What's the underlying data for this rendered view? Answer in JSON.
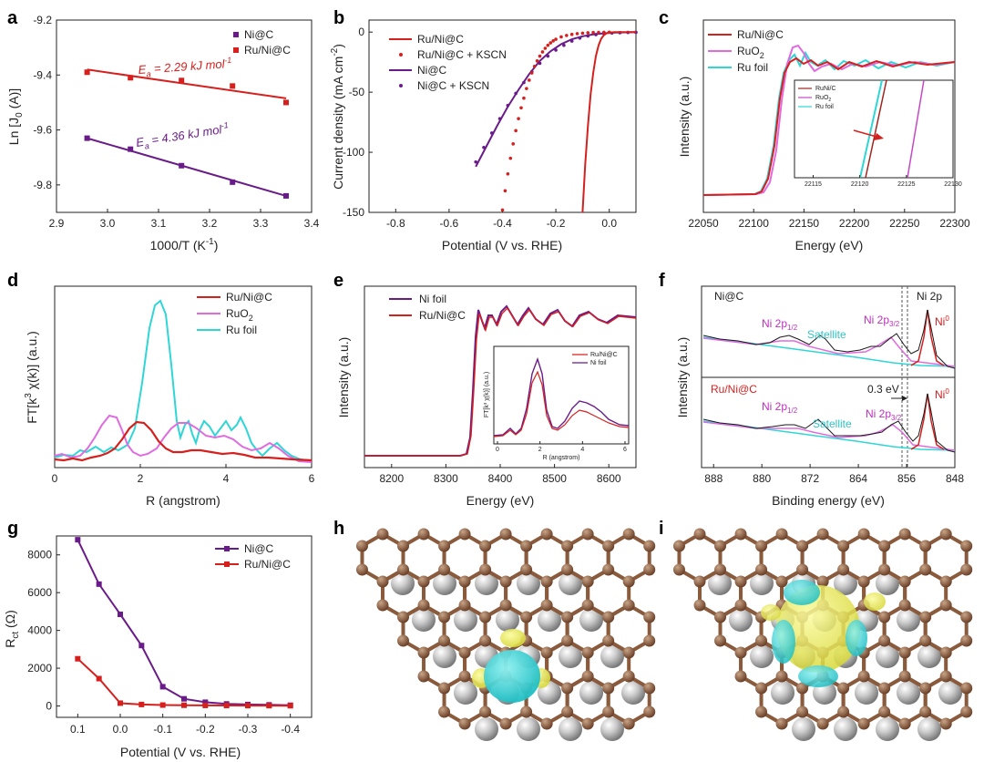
{
  "colors": {
    "red": "#d5201e",
    "purple": "#6a1b8a",
    "cyan": "#2fd6d6",
    "magenta": "#e06be0",
    "black": "#1a1a1a",
    "brown": "#8a5a3c",
    "gray": "#b9b9b9",
    "yellow": "#ecec55"
  },
  "panel_letters": [
    "a",
    "b",
    "c",
    "d",
    "e",
    "f",
    "g",
    "h",
    "i"
  ],
  "chart_data": [
    {
      "id": "a",
      "type": "scatter",
      "xlabel": "1000/T (K",
      "xlabel_sup": "-1",
      "xlabel_end": ")",
      "ylabel": "Ln [J",
      "ylabel_sub": "0",
      "ylabel_end": " (A)]",
      "xlim": [
        2.9,
        3.4
      ],
      "ylim": [
        -9.9,
        -9.2
      ],
      "xticks": [
        "2.9",
        "3.0",
        "3.1",
        "3.2",
        "3.3",
        "3.4"
      ],
      "yticks": [
        "-9.2",
        "-9.4",
        "-9.6",
        "-9.8"
      ],
      "legend": [
        "Ni@C",
        "Ru/Ni@C"
      ],
      "annotations": [
        {
          "main": "E",
          "sub": "a",
          "rest": " = 2.29 kJ mol",
          "sup": "-1"
        },
        {
          "main": "E",
          "sub": "a",
          "rest": " = 4.36 kJ mol",
          "sup": "-1"
        }
      ],
      "series": [
        {
          "name": "Ru/Ni@C",
          "x": [
            2.96,
            3.045,
            3.145,
            3.245,
            3.35
          ],
          "y": [
            -9.39,
            -9.41,
            -9.42,
            -9.44,
            -9.5
          ],
          "fit": [
            [
              2.96,
              -9.38
            ],
            [
              3.35,
              -9.485
            ]
          ]
        },
        {
          "name": "Ni@C",
          "x": [
            2.96,
            3.045,
            3.145,
            3.245,
            3.35
          ],
          "y": [
            -9.63,
            -9.67,
            -9.73,
            -9.79,
            -9.84
          ],
          "fit": [
            [
              2.96,
              -9.63
            ],
            [
              3.35,
              -9.84
            ]
          ]
        }
      ]
    },
    {
      "id": "b",
      "type": "line",
      "xlabel": "Potential (V vs. RHE)",
      "ylabel": "Current density (mA cm",
      "ylabel_sup": "-2",
      "ylabel_end": ")",
      "xlim": [
        -0.9,
        0.1
      ],
      "ylim": [
        -150,
        10
      ],
      "xticks": [
        "-0.8",
        "-0.6",
        "-0.4",
        "-0.2",
        "0.0"
      ],
      "yticks": [
        "0",
        "-50",
        "-100",
        "-150"
      ],
      "legend": [
        "Ru/Ni@C",
        "Ru/Ni@C + KSCN",
        "Ni@C",
        "Ni@C + KSCN"
      ],
      "series": [
        {
          "name": "Ru/Ni@C",
          "x": [
            -0.1,
            -0.09,
            -0.08,
            -0.07,
            -0.06,
            -0.05,
            -0.04,
            -0.03,
            -0.02,
            -0.01,
            0.0,
            0.02,
            0.1
          ],
          "y": [
            -150,
            -110,
            -78,
            -52,
            -34,
            -20,
            -11,
            -5.5,
            -2.5,
            -1,
            -0.4,
            -0.1,
            0
          ]
        },
        {
          "name": "Ru/Ni@C + KSCN",
          "x": [
            -0.4,
            -0.39,
            -0.38,
            -0.37,
            -0.36,
            -0.35,
            -0.34,
            -0.33,
            -0.32,
            -0.31,
            -0.3,
            -0.29,
            -0.28,
            -0.27,
            -0.26,
            -0.25,
            -0.24,
            -0.23,
            -0.22,
            -0.21,
            -0.2,
            -0.18,
            -0.16,
            -0.14,
            -0.12,
            -0.1,
            -0.08,
            -0.06,
            -0.04,
            -0.02,
            0.0
          ],
          "y": [
            -148,
            -132,
            -118,
            -105,
            -93,
            -82,
            -72,
            -63,
            -55,
            -47,
            -40,
            -34,
            -28.5,
            -24,
            -20,
            -16.5,
            -13.5,
            -11,
            -9,
            -7.3,
            -6,
            -4,
            -2.8,
            -1.9,
            -1.3,
            -0.9,
            -0.6,
            -0.4,
            -0.25,
            -0.15,
            -0.1
          ]
        },
        {
          "name": "Ni@C",
          "x": [
            -0.5,
            -0.46,
            -0.42,
            -0.38,
            -0.34,
            -0.3,
            -0.26,
            -0.22,
            -0.18,
            -0.14,
            -0.1,
            -0.06,
            -0.02,
            0.02,
            0.06,
            0.1
          ],
          "y": [
            -112,
            -95,
            -78,
            -62,
            -48,
            -35,
            -24,
            -16,
            -10,
            -6,
            -3.5,
            -2,
            -1,
            -0.5,
            -0.2,
            0
          ]
        },
        {
          "name": "Ni@C + KSCN",
          "x": [
            -0.5,
            -0.47,
            -0.44,
            -0.41,
            -0.38,
            -0.35,
            -0.32,
            -0.29,
            -0.26,
            -0.23,
            -0.2,
            -0.17,
            -0.14,
            -0.11,
            -0.08,
            -0.05,
            -0.02,
            0.01,
            0.04,
            0.07,
            0.1
          ],
          "y": [
            -108,
            -96,
            -84,
            -72,
            -61,
            -51,
            -42,
            -33,
            -26,
            -20,
            -15,
            -11,
            -7.5,
            -5,
            -3.3,
            -2.1,
            -1.3,
            -0.8,
            -0.5,
            -0.3,
            -0.2
          ]
        }
      ]
    },
    {
      "id": "c",
      "type": "line",
      "xlabel": "Energy (eV)",
      "ylabel": "Intensity (a.u.)",
      "xlim": [
        22050,
        22300
      ],
      "xticks": [
        "22050",
        "22100",
        "22150",
        "22200",
        "22250",
        "22300"
      ],
      "legend": [
        {
          "main": "Ru/Ni@C"
        },
        {
          "main": "RuO",
          "sub": "2"
        },
        {
          "main": "Ru foil"
        }
      ],
      "inset": {
        "xlim": [
          22113,
          22130
        ],
        "xticks": [
          "22115",
          "22120",
          "22125",
          "22130"
        ],
        "legend": [
          {
            "main": "RuNi/C"
          },
          {
            "main": "RuO",
            "sub": "2"
          },
          {
            "main": "Ru foil"
          }
        ]
      }
    },
    {
      "id": "d",
      "type": "line",
      "xlabel": "R (angstrom)",
      "ylabel": "FT[k",
      "ylabel_sup": "3",
      "ylabel_end": " χ(k)] (a.u.)",
      "xlim": [
        0,
        6
      ],
      "xticks": [
        "0",
        "2",
        "4",
        "6"
      ],
      "legend": [
        {
          "main": "Ru/Ni@C"
        },
        {
          "main": "RuO",
          "sub": "2"
        },
        {
          "main": "Ru foil"
        }
      ]
    },
    {
      "id": "e",
      "type": "line",
      "xlabel": "Energy (eV)",
      "ylabel": "Intensity (a.u.)",
      "xlim": [
        8150,
        8650
      ],
      "xticks": [
        "8200",
        "8300",
        "8400",
        "8500",
        "8600"
      ],
      "legend": [
        "Ni foil",
        "Ru/Ni@C"
      ],
      "inset": {
        "xlim": [
          0,
          6
        ],
        "xticks": [
          "0",
          "2",
          "4",
          "6"
        ],
        "xlabel": "R (angstrom)",
        "ylabel": "FT[k³ χ(k)] (a.u.)",
        "legend": [
          "Ru/Ni@C",
          "Ni foil"
        ]
      }
    },
    {
      "id": "f",
      "type": "line",
      "xlabel": "Binding energy (eV)",
      "ylabel": "Intensity (a.u.)",
      "xlim": [
        890,
        848
      ],
      "xticks": [
        "888",
        "880",
        "872",
        "864",
        "856",
        "848"
      ],
      "top_label": "Ni 2p",
      "sample_top": "Ni@C",
      "sample_bottom": "Ru/Ni@C",
      "peak_labels": [
        {
          "main": "Ni 2p",
          "sub": "1/2"
        },
        {
          "main": "Ni 2p",
          "sub": "3/2"
        },
        {
          "main": "Satellite"
        },
        {
          "main": "Ni",
          "sup": "0"
        }
      ],
      "shift_label": "0.3 eV"
    },
    {
      "id": "g",
      "type": "line",
      "xlabel": "Potential (V vs. RHE)",
      "ylabel": "R",
      "ylabel_sub": "ct",
      "ylabel_end": " (Ω)",
      "xlim": [
        0.15,
        -0.45
      ],
      "ylim": [
        -600,
        9000
      ],
      "xticks": [
        "0.1",
        "0.0",
        "-0.1",
        "-0.2",
        "-0.3",
        "-0.4"
      ],
      "yticks": [
        "0",
        "2000",
        "4000",
        "6000",
        "8000"
      ],
      "legend": [
        "Ni@C",
        "Ru/Ni@C"
      ],
      "series": [
        {
          "name": "Ni@C",
          "x": [
            0.1,
            0.05,
            0.0,
            -0.05,
            -0.1,
            -0.15,
            -0.2,
            -0.25,
            -0.3,
            -0.35,
            -0.4
          ],
          "y": [
            8800,
            6450,
            4850,
            3200,
            1020,
            380,
            200,
            110,
            80,
            60,
            40
          ]
        },
        {
          "name": "Ru/Ni@C",
          "x": [
            0.1,
            0.05,
            0.0,
            -0.05,
            -0.1,
            -0.15,
            -0.2,
            -0.25,
            -0.3,
            -0.35,
            -0.4
          ],
          "y": [
            2500,
            1450,
            150,
            80,
            50,
            40,
            30,
            25,
            20,
            20,
            15
          ]
        }
      ]
    }
  ]
}
